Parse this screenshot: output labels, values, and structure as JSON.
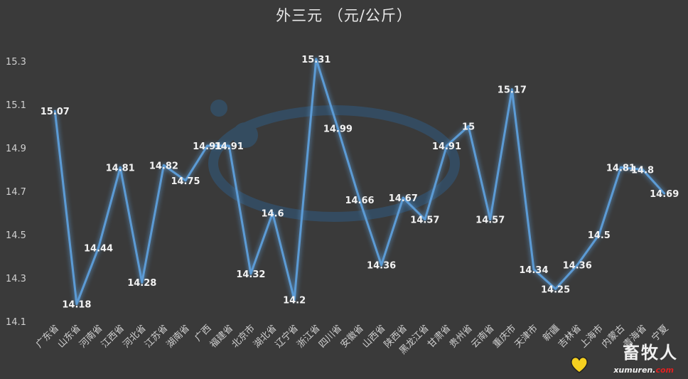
{
  "chart_data": {
    "type": "line",
    "title": "外三元  （元/公斤）",
    "categories": [
      "广东省",
      "山东省",
      "河南省",
      "江西省",
      "河北省",
      "江苏省",
      "湖南省",
      "广西",
      "福建省",
      "北京市",
      "湖北省",
      "辽宁省",
      "浙江省",
      "四川省",
      "安徽省",
      "山西省",
      "陕西省",
      "黑龙江省",
      "甘肃省",
      "贵州省",
      "云南省",
      "重庆市",
      "天津市",
      "新疆",
      "吉林省",
      "上海市",
      "内蒙古",
      "青海省",
      "宁夏"
    ],
    "values": [
      15.07,
      14.18,
      14.44,
      14.81,
      14.28,
      14.82,
      14.75,
      14.91,
      14.91,
      14.32,
      14.6,
      14.2,
      15.31,
      14.99,
      14.66,
      14.36,
      14.67,
      14.57,
      14.91,
      15,
      14.57,
      15.17,
      14.34,
      14.25,
      14.36,
      14.5,
      14.81,
      14.8,
      14.69
    ],
    "labels": [
      "15.07",
      "14.18",
      "14.44",
      "14.81",
      "14.28",
      "14.82",
      "14.75",
      "14.91",
      "14.91",
      "14.32",
      "14.6",
      "14.2",
      "15.31",
      "14.99",
      "14.66",
      "14.36",
      "14.67",
      "14.57",
      "14.91",
      "15",
      "14.57",
      "15.17",
      "14.34",
      "14.25",
      "14.36",
      "14.5",
      "14.81",
      "14.8",
      "14.69"
    ],
    "yticks": [
      "14.1",
      "14.3",
      "14.5",
      "14.7",
      "14.9",
      "15.1",
      "15.3"
    ],
    "ylim": [
      14.1,
      15.3
    ],
    "grid": false,
    "line_color": "#5b9bd5"
  },
  "watermark": {
    "text": "畜牧人",
    "url_prefix": "xumuren.",
    "url_suffix": "com"
  }
}
